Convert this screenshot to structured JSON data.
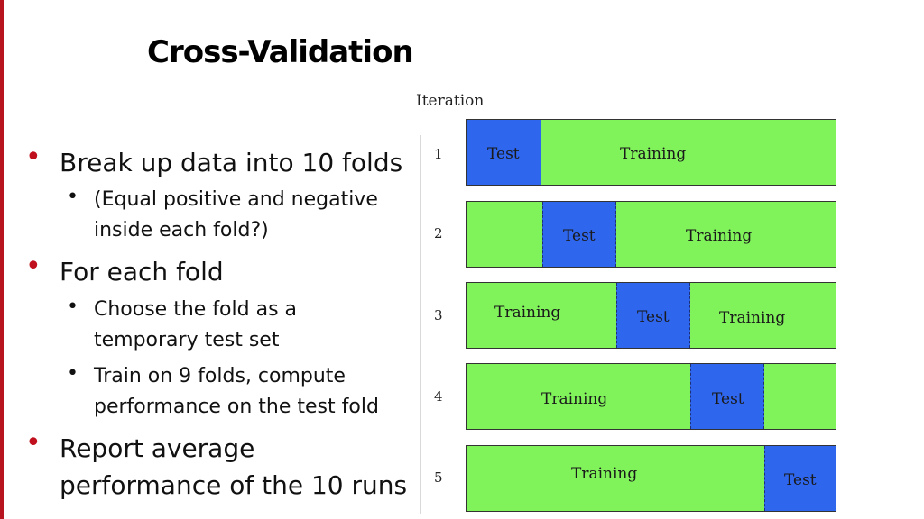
{
  "slide": {
    "title": "Cross-Validation",
    "accent_color": "#b8141f"
  },
  "bullets": {
    "b1": "Break up data into 10 folds",
    "b1_sub1_line1": "(Equal positive and negative",
    "b1_sub1_line2": "inside each fold?)",
    "b2": "For each fold",
    "b2_sub1_line1": "Choose the fold as a",
    "b2_sub1_line2": "temporary test set",
    "b2_sub2_line1": "Train on 9 folds, compute",
    "b2_sub2_line2": "performance on the test fold",
    "b3_line1": "Report average",
    "b3_line2": "performance of the 10 runs"
  },
  "diagram": {
    "header": "Iteration",
    "training_color": "#80f35b",
    "test_color": "#2f66ee",
    "rows": [
      {
        "iteration": "1",
        "test_label": "Test",
        "training_labels": [
          "Training"
        ]
      },
      {
        "iteration": "2",
        "test_label": "Test",
        "training_labels": [
          "Training"
        ]
      },
      {
        "iteration": "3",
        "test_label": "Test",
        "training_labels": [
          "Training",
          "Training"
        ]
      },
      {
        "iteration": "4",
        "test_label": "Test",
        "training_labels": [
          "Training"
        ]
      },
      {
        "iteration": "5",
        "test_label": "Test",
        "training_labels": [
          "Training"
        ]
      }
    ]
  }
}
